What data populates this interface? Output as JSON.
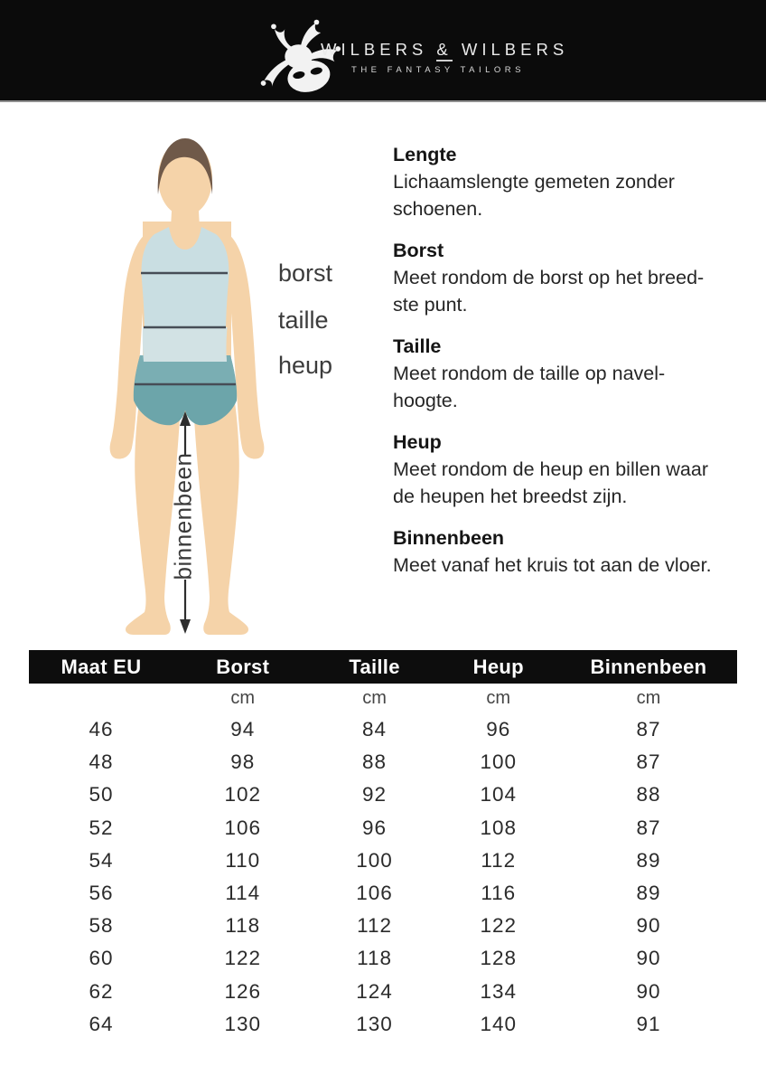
{
  "brand": {
    "name_part1": "WILBERS",
    "amp": "&",
    "name_part2": "WILBERS",
    "tagline": "THE FANTASY TAILORS",
    "logo_icon": "jester-mask-icon",
    "header_bg": "#0b0b0b",
    "header_text_color": "#eaeaea"
  },
  "figure": {
    "labels": {
      "borst": "borst",
      "taille": "taille",
      "heup": "heup",
      "binnenbeen": "binnenbeen"
    },
    "colors": {
      "skin": "#f5d3a9",
      "hair": "#6f5949",
      "tank_top": "#c9dee2",
      "tank_lower": "#d2e2e4",
      "shorts_upper": "#7aaeb3",
      "shorts_lower": "#6ca5aa",
      "measure_line": "#464d56",
      "arrow": "#2e2e2e"
    }
  },
  "guide": {
    "sections": [
      {
        "title": "Lengte",
        "body": "Lichaamslengte gemeten zonder\nschoenen."
      },
      {
        "title": "Borst",
        "body": "Meet rondom de borst op het breed-\nste punt."
      },
      {
        "title": "Taille",
        "body": "Meet rondom de taille op navel-\nhoogte."
      },
      {
        "title": "Heup",
        "body": "Meet rondom de heup en billen waar\nde heupen het breedst zijn."
      },
      {
        "title": "Binnenbeen",
        "body": "Meet vanaf het kruis tot aan de vloer."
      }
    ]
  },
  "size_table": {
    "columns": [
      "Maat EU",
      "Borst",
      "Taille",
      "Heup",
      "Binnenbeen"
    ],
    "units": [
      "",
      "cm",
      "cm",
      "cm",
      "cm"
    ],
    "rows": [
      [
        "46",
        "94",
        "84",
        "96",
        "87"
      ],
      [
        "48",
        "98",
        "88",
        "100",
        "87"
      ],
      [
        "50",
        "102",
        "92",
        "104",
        "88"
      ],
      [
        "52",
        "106",
        "96",
        "108",
        "87"
      ],
      [
        "54",
        "110",
        "100",
        "112",
        "89"
      ],
      [
        "56",
        "114",
        "106",
        "116",
        "89"
      ],
      [
        "58",
        "118",
        "112",
        "122",
        "90"
      ],
      [
        "60",
        "122",
        "118",
        "128",
        "90"
      ],
      [
        "62",
        "126",
        "124",
        "134",
        "90"
      ],
      [
        "64",
        "130",
        "130",
        "140",
        "91"
      ]
    ],
    "header_bg": "#0d0d0d",
    "header_text": "#ffffff"
  }
}
